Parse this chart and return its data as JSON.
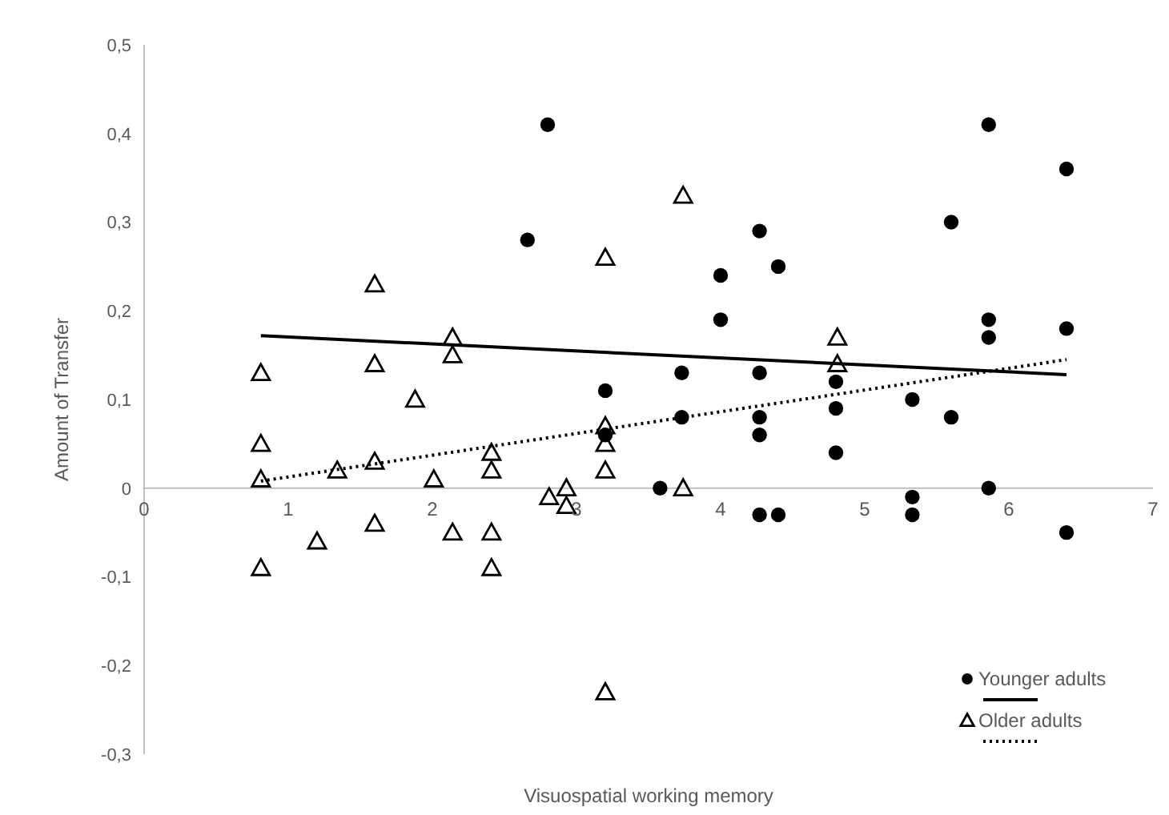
{
  "chart_data": {
    "type": "scatter",
    "xlabel": "Visuospatial working memory",
    "ylabel": "Amount of Transfer",
    "xlim": [
      0,
      7
    ],
    "xticks": [
      0,
      1,
      2,
      3,
      4,
      5,
      6,
      7
    ],
    "ylim": [
      -0.3,
      0.5
    ],
    "yticks": [
      {
        "value": -0.3,
        "label": "-0,3"
      },
      {
        "value": -0.2,
        "label": "-0,2"
      },
      {
        "value": -0.1,
        "label": "-0,1"
      },
      {
        "value": 0,
        "label": "0"
      },
      {
        "value": 0.1,
        "label": "0,1"
      },
      {
        "value": 0.2,
        "label": "0,2"
      },
      {
        "value": 0.3,
        "label": "0,3"
      },
      {
        "value": 0.4,
        "label": "0,4"
      },
      {
        "value": 0.5,
        "label": "0,5"
      }
    ],
    "grid": false,
    "legend": "bottom right",
    "series": [
      {
        "name": "Younger adults",
        "marker": "circle",
        "color": "#000000",
        "x": [
          2.8,
          2.66,
          3.2,
          3.2,
          3.58,
          3.73,
          3.73,
          4.0,
          4.0,
          4.27,
          4.27,
          4.27,
          4.27,
          4.27,
          4.4,
          4.4,
          4.8,
          4.8,
          4.8,
          5.33,
          5.33,
          5.33,
          5.6,
          5.6,
          5.86,
          5.86,
          5.86,
          5.86,
          6.4,
          6.4,
          6.4
        ],
        "values": [
          0.41,
          0.28,
          0.11,
          0.06,
          0,
          0.13,
          0.08,
          0.24,
          0.19,
          0.29,
          0.13,
          0.08,
          0.06,
          -0.03,
          0.25,
          -0.03,
          0.12,
          0.09,
          0.04,
          0.1,
          -0.01,
          -0.03,
          0.3,
          0.08,
          0.41,
          0.19,
          0.17,
          0,
          0.36,
          0.18,
          -0.05
        ]
      },
      {
        "type": "line",
        "marker": "none",
        "line_style": "solid",
        "color": "#000000",
        "x": [
          0.81,
          6.4
        ],
        "values": [
          0.172,
          0.128
        ]
      },
      {
        "name": "Older adults",
        "marker": "triangle",
        "color": "#000000",
        "x": [
          0.81,
          0.81,
          0.81,
          0.81,
          1.2,
          1.34,
          1.6,
          1.6,
          1.6,
          1.6,
          1.88,
          2.01,
          2.14,
          2.14,
          2.14,
          2.41,
          2.41,
          2.41,
          2.41,
          2.81,
          2.93,
          2.93,
          3.2,
          3.2,
          3.2,
          3.2,
          3.2,
          3.74,
          3.74,
          4.81,
          4.81
        ],
        "values": [
          0.13,
          0.05,
          0.01,
          -0.09,
          -0.06,
          0.02,
          0.23,
          0.14,
          0.03,
          -0.04,
          0.1,
          0.01,
          0.17,
          0.15,
          -0.05,
          0.04,
          0.02,
          -0.05,
          -0.09,
          -0.01,
          0,
          -0.02,
          0.26,
          0.07,
          0.05,
          0.02,
          -0.23,
          0.33,
          0,
          0.17,
          0.14
        ]
      },
      {
        "type": "line",
        "marker": "none",
        "line_style": "dotted",
        "color": "#000000",
        "x": [
          0.81,
          6.4
        ],
        "values": [
          0.008,
          0.145
        ]
      }
    ]
  }
}
